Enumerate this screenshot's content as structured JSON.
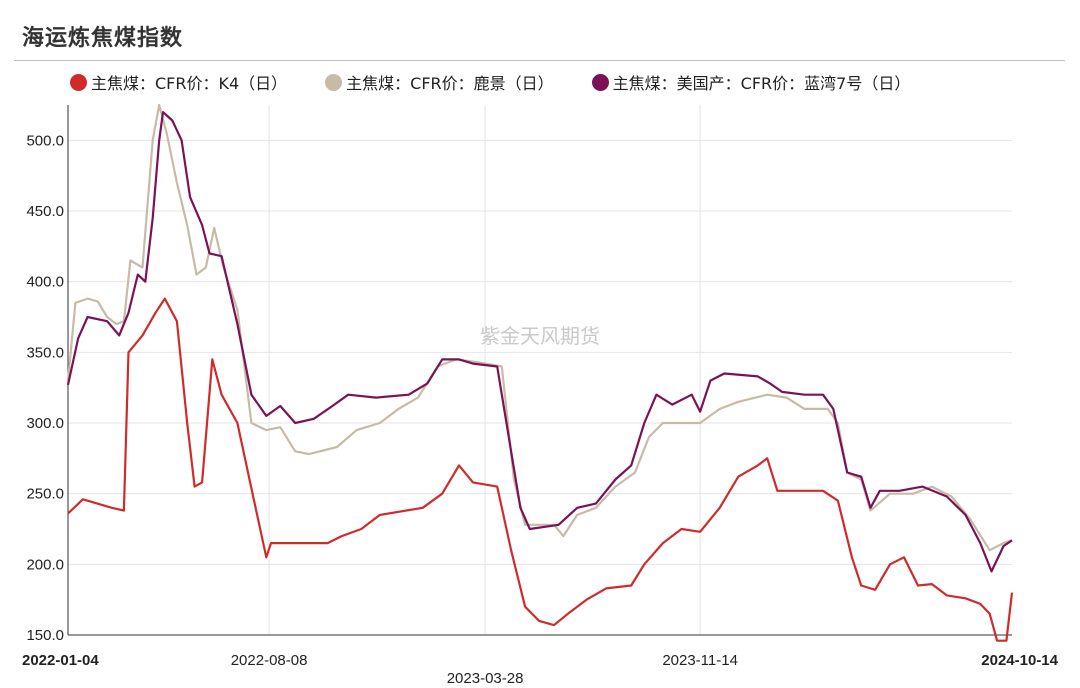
{
  "title": "海运炼焦煤指数",
  "watermark": "紫金天风期货",
  "chart_data": {
    "type": "line",
    "ylim": [
      150,
      525
    ],
    "yticks": [
      "500.0",
      "450.0",
      "400.0",
      "350.0",
      "300.0",
      "250.0",
      "200.0",
      "150.0"
    ],
    "xtick_labels": [
      "2022-01-04",
      "2022-08-08",
      "2023-03-28",
      "2023-11-14",
      "2024-10-14"
    ],
    "grid": true,
    "legend_position": "top",
    "series": [
      {
        "name": "主焦煤：CFR价：K4（日）",
        "color": "#d02b2b",
        "points": [
          [
            "2022-01-04",
            236
          ],
          [
            "2022-01-20",
            246
          ],
          [
            "2022-02-20",
            240
          ],
          [
            "2022-03-05",
            238
          ],
          [
            "2022-03-10",
            350
          ],
          [
            "2022-03-25",
            362
          ],
          [
            "2022-04-08",
            378
          ],
          [
            "2022-04-18",
            388
          ],
          [
            "2022-05-01",
            372
          ],
          [
            "2022-05-12",
            300
          ],
          [
            "2022-05-20",
            255
          ],
          [
            "2022-05-28",
            258
          ],
          [
            "2022-06-08",
            345
          ],
          [
            "2022-06-18",
            320
          ],
          [
            "2022-07-05",
            300
          ],
          [
            "2022-07-18",
            260
          ],
          [
            "2022-08-05",
            205
          ],
          [
            "2022-08-10",
            215
          ],
          [
            "2022-10-10",
            215
          ],
          [
            "2022-10-25",
            220
          ],
          [
            "2022-11-15",
            225
          ],
          [
            "2022-12-05",
            235
          ],
          [
            "2023-01-20",
            240
          ],
          [
            "2023-02-10",
            250
          ],
          [
            "2023-02-28",
            270
          ],
          [
            "2023-03-15",
            258
          ],
          [
            "2023-04-10",
            255
          ],
          [
            "2023-04-25",
            210
          ],
          [
            "2023-05-10",
            170
          ],
          [
            "2023-05-25",
            160
          ],
          [
            "2023-06-10",
            157
          ],
          [
            "2023-06-25",
            165
          ],
          [
            "2023-07-15",
            175
          ],
          [
            "2023-08-05",
            183
          ],
          [
            "2023-09-01",
            185
          ],
          [
            "2023-09-15",
            200
          ],
          [
            "2023-10-05",
            215
          ],
          [
            "2023-10-25",
            225
          ],
          [
            "2023-11-14",
            223
          ],
          [
            "2023-12-05",
            240
          ],
          [
            "2023-12-25",
            262
          ],
          [
            "2024-01-15",
            270
          ],
          [
            "2024-01-25",
            275
          ],
          [
            "2024-02-05",
            252
          ],
          [
            "2024-03-25",
            252
          ],
          [
            "2024-04-10",
            245
          ],
          [
            "2024-04-25",
            205
          ],
          [
            "2024-05-05",
            185
          ],
          [
            "2024-05-20",
            182
          ],
          [
            "2024-06-05",
            200
          ],
          [
            "2024-06-20",
            205
          ],
          [
            "2024-07-05",
            185
          ],
          [
            "2024-07-20",
            186
          ],
          [
            "2024-08-05",
            178
          ],
          [
            "2024-08-25",
            176
          ],
          [
            "2024-09-10",
            172
          ],
          [
            "2024-09-20",
            165
          ],
          [
            "2024-09-28",
            146
          ],
          [
            "2024-10-08",
            146
          ],
          [
            "2024-10-14",
            180
          ]
        ]
      },
      {
        "name": "主焦煤：CFR价：鹿景（日）",
        "color": "#c8bba6",
        "points": [
          [
            "2022-01-04",
            330
          ],
          [
            "2022-01-12",
            385
          ],
          [
            "2022-01-25",
            388
          ],
          [
            "2022-02-05",
            386
          ],
          [
            "2022-02-15",
            375
          ],
          [
            "2022-02-25",
            370
          ],
          [
            "2022-03-05",
            372
          ],
          [
            "2022-03-12",
            415
          ],
          [
            "2022-03-25",
            410
          ],
          [
            "2022-04-05",
            500
          ],
          [
            "2022-04-12",
            525
          ],
          [
            "2022-04-20",
            505
          ],
          [
            "2022-05-01",
            470
          ],
          [
            "2022-05-12",
            440
          ],
          [
            "2022-05-22",
            405
          ],
          [
            "2022-06-01",
            410
          ],
          [
            "2022-06-10",
            438
          ],
          [
            "2022-06-20",
            410
          ],
          [
            "2022-07-05",
            380
          ],
          [
            "2022-07-20",
            300
          ],
          [
            "2022-08-05",
            295
          ],
          [
            "2022-08-20",
            297
          ],
          [
            "2022-09-05",
            280
          ],
          [
            "2022-09-20",
            278
          ],
          [
            "2022-10-20",
            283
          ],
          [
            "2022-11-10",
            295
          ],
          [
            "2022-12-05",
            300
          ],
          [
            "2022-12-25",
            310
          ],
          [
            "2023-01-15",
            318
          ],
          [
            "2023-02-05",
            340
          ],
          [
            "2023-02-25",
            345
          ],
          [
            "2023-03-20",
            343
          ],
          [
            "2023-04-15",
            340
          ],
          [
            "2023-04-28",
            260
          ],
          [
            "2023-05-10",
            228
          ],
          [
            "2023-06-10",
            228
          ],
          [
            "2023-06-20",
            220
          ],
          [
            "2023-07-05",
            235
          ],
          [
            "2023-07-25",
            240
          ],
          [
            "2023-08-15",
            255
          ],
          [
            "2023-09-05",
            265
          ],
          [
            "2023-09-20",
            290
          ],
          [
            "2023-10-05",
            300
          ],
          [
            "2023-11-14",
            300
          ],
          [
            "2023-12-05",
            310
          ],
          [
            "2023-12-25",
            315
          ],
          [
            "2024-01-25",
            320
          ],
          [
            "2024-02-15",
            318
          ],
          [
            "2024-03-05",
            310
          ],
          [
            "2024-03-30",
            310
          ],
          [
            "2024-04-10",
            300
          ],
          [
            "2024-04-20",
            265
          ],
          [
            "2024-05-05",
            260
          ],
          [
            "2024-05-15",
            238
          ],
          [
            "2024-06-05",
            250
          ],
          [
            "2024-06-30",
            250
          ],
          [
            "2024-07-20",
            255
          ],
          [
            "2024-08-10",
            248
          ],
          [
            "2024-08-30",
            232
          ],
          [
            "2024-09-20",
            210
          ],
          [
            "2024-10-05",
            215
          ],
          [
            "2024-10-14",
            217
          ]
        ]
      },
      {
        "name": "主焦煤：美国产：CFR价：蓝湾7号（日）",
        "color": "#7b1255",
        "points": [
          [
            "2022-01-04",
            327
          ],
          [
            "2022-01-15",
            360
          ],
          [
            "2022-01-25",
            375
          ],
          [
            "2022-02-15",
            372
          ],
          [
            "2022-02-28",
            362
          ],
          [
            "2022-03-10",
            378
          ],
          [
            "2022-03-20",
            405
          ],
          [
            "2022-03-28",
            400
          ],
          [
            "2022-04-05",
            445
          ],
          [
            "2022-04-12",
            500
          ],
          [
            "2022-04-16",
            520
          ],
          [
            "2022-04-26",
            514
          ],
          [
            "2022-05-06",
            500
          ],
          [
            "2022-05-15",
            460
          ],
          [
            "2022-05-28",
            440
          ],
          [
            "2022-06-05",
            420
          ],
          [
            "2022-06-18",
            418
          ],
          [
            "2022-07-05",
            370
          ],
          [
            "2022-07-20",
            320
          ],
          [
            "2022-08-05",
            305
          ],
          [
            "2022-08-20",
            312
          ],
          [
            "2022-09-05",
            300
          ],
          [
            "2022-09-25",
            303
          ],
          [
            "2022-10-15",
            312
          ],
          [
            "2022-11-01",
            320
          ],
          [
            "2022-12-01",
            318
          ],
          [
            "2023-01-05",
            320
          ],
          [
            "2023-01-25",
            328
          ],
          [
            "2023-02-10",
            345
          ],
          [
            "2023-02-28",
            345
          ],
          [
            "2023-03-15",
            342
          ],
          [
            "2023-04-10",
            340
          ],
          [
            "2023-04-25",
            280
          ],
          [
            "2023-05-05",
            240
          ],
          [
            "2023-05-15",
            225
          ],
          [
            "2023-06-15",
            228
          ],
          [
            "2023-07-05",
            240
          ],
          [
            "2023-07-25",
            243
          ],
          [
            "2023-08-15",
            260
          ],
          [
            "2023-09-01",
            270
          ],
          [
            "2023-09-15",
            300
          ],
          [
            "2023-09-28",
            320
          ],
          [
            "2023-10-15",
            313
          ],
          [
            "2023-11-05",
            320
          ],
          [
            "2023-11-14",
            308
          ],
          [
            "2023-11-25",
            330
          ],
          [
            "2023-12-10",
            335
          ],
          [
            "2024-01-15",
            333
          ],
          [
            "2024-01-28",
            328
          ],
          [
            "2024-02-10",
            322
          ],
          [
            "2024-03-05",
            320
          ],
          [
            "2024-03-25",
            320
          ],
          [
            "2024-04-05",
            310
          ],
          [
            "2024-04-20",
            265
          ],
          [
            "2024-05-05",
            262
          ],
          [
            "2024-05-15",
            240
          ],
          [
            "2024-05-25",
            252
          ],
          [
            "2024-06-15",
            252
          ],
          [
            "2024-07-10",
            255
          ],
          [
            "2024-08-05",
            248
          ],
          [
            "2024-08-25",
            235
          ],
          [
            "2024-09-10",
            215
          ],
          [
            "2024-09-22",
            195
          ],
          [
            "2024-10-05",
            213
          ],
          [
            "2024-10-14",
            217
          ]
        ]
      }
    ]
  }
}
